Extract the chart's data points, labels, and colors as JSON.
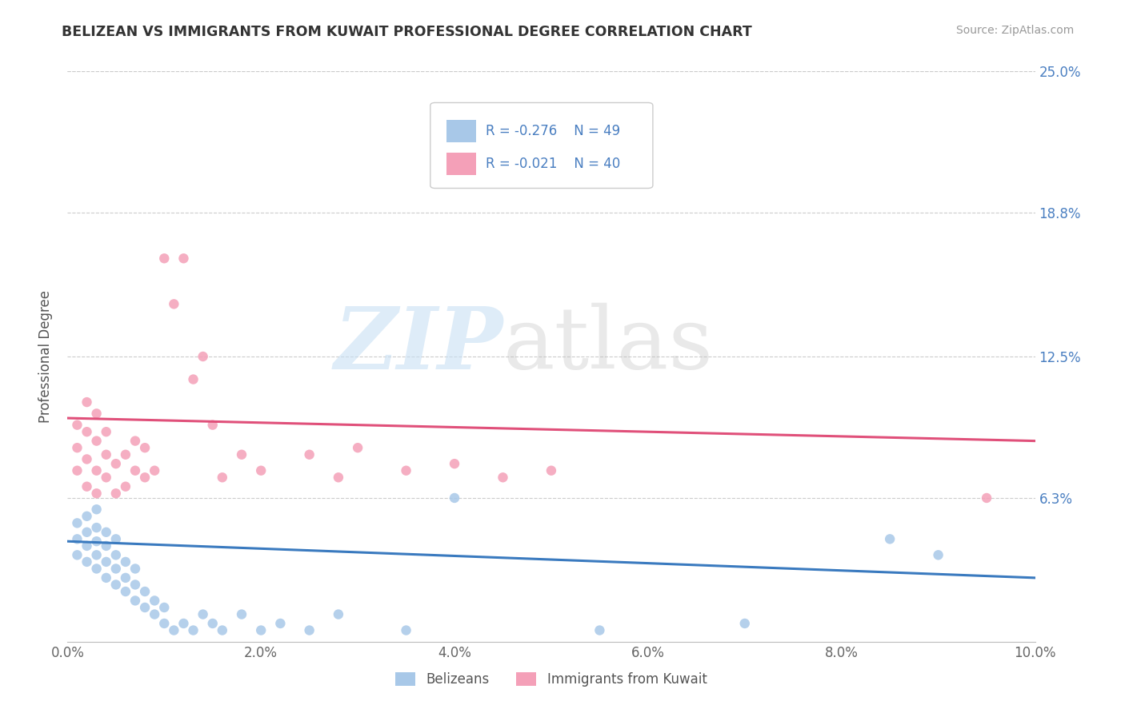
{
  "title": "BELIZEAN VS IMMIGRANTS FROM KUWAIT PROFESSIONAL DEGREE CORRELATION CHART",
  "source": "Source: ZipAtlas.com",
  "ylabel": "Professional Degree",
  "xlim": [
    0.0,
    0.1
  ],
  "ylim": [
    0.0,
    0.25
  ],
  "xtick_labels": [
    "0.0%",
    "2.0%",
    "4.0%",
    "6.0%",
    "8.0%",
    "10.0%"
  ],
  "xtick_vals": [
    0.0,
    0.02,
    0.04,
    0.06,
    0.08,
    0.1
  ],
  "ytick_labels": [
    "6.3%",
    "12.5%",
    "18.8%",
    "25.0%"
  ],
  "ytick_vals": [
    0.063,
    0.125,
    0.188,
    0.25
  ],
  "blue_color": "#a8c8e8",
  "pink_color": "#f4a0b8",
  "blue_line_color": "#3a7abf",
  "pink_line_color": "#e0507a",
  "legend_text_color": "#4a7fc1",
  "title_color": "#333333",
  "grid_color": "#cccccc",
  "legend_label1": "Belizeans",
  "legend_label2": "Immigrants from Kuwait",
  "blue_x": [
    0.001,
    0.001,
    0.001,
    0.002,
    0.002,
    0.002,
    0.002,
    0.003,
    0.003,
    0.003,
    0.003,
    0.003,
    0.004,
    0.004,
    0.004,
    0.004,
    0.005,
    0.005,
    0.005,
    0.005,
    0.006,
    0.006,
    0.006,
    0.007,
    0.007,
    0.007,
    0.008,
    0.008,
    0.009,
    0.009,
    0.01,
    0.01,
    0.011,
    0.012,
    0.013,
    0.014,
    0.015,
    0.016,
    0.018,
    0.02,
    0.022,
    0.025,
    0.028,
    0.035,
    0.04,
    0.055,
    0.07,
    0.085,
    0.09
  ],
  "blue_y": [
    0.038,
    0.045,
    0.052,
    0.035,
    0.042,
    0.048,
    0.055,
    0.032,
    0.038,
    0.044,
    0.05,
    0.058,
    0.028,
    0.035,
    0.042,
    0.048,
    0.025,
    0.032,
    0.038,
    0.045,
    0.022,
    0.028,
    0.035,
    0.018,
    0.025,
    0.032,
    0.015,
    0.022,
    0.012,
    0.018,
    0.008,
    0.015,
    0.005,
    0.008,
    0.005,
    0.012,
    0.008,
    0.005,
    0.012,
    0.005,
    0.008,
    0.005,
    0.012,
    0.005,
    0.063,
    0.005,
    0.008,
    0.045,
    0.038
  ],
  "pink_x": [
    0.001,
    0.001,
    0.001,
    0.002,
    0.002,
    0.002,
    0.002,
    0.003,
    0.003,
    0.003,
    0.003,
    0.004,
    0.004,
    0.004,
    0.005,
    0.005,
    0.006,
    0.006,
    0.007,
    0.007,
    0.008,
    0.008,
    0.009,
    0.01,
    0.011,
    0.012,
    0.013,
    0.014,
    0.015,
    0.016,
    0.018,
    0.02,
    0.025,
    0.03,
    0.035,
    0.04,
    0.045,
    0.05,
    0.095,
    0.028
  ],
  "pink_y": [
    0.075,
    0.085,
    0.095,
    0.068,
    0.08,
    0.092,
    0.105,
    0.065,
    0.075,
    0.088,
    0.1,
    0.072,
    0.082,
    0.092,
    0.065,
    0.078,
    0.068,
    0.082,
    0.075,
    0.088,
    0.072,
    0.085,
    0.075,
    0.168,
    0.148,
    0.168,
    0.115,
    0.125,
    0.095,
    0.072,
    0.082,
    0.075,
    0.082,
    0.085,
    0.075,
    0.078,
    0.072,
    0.075,
    0.063,
    0.072
  ],
  "blue_trend_x": [
    0.0,
    0.1
  ],
  "blue_trend_y": [
    0.044,
    0.028
  ],
  "pink_trend_x": [
    0.0,
    0.1
  ],
  "pink_trend_y": [
    0.098,
    0.088
  ]
}
